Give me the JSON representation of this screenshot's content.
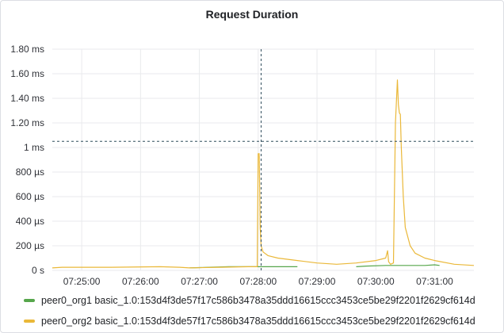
{
  "panel": {
    "title": "Request Duration"
  },
  "chart_data": {
    "type": "line",
    "title": "Request Duration",
    "xlabel": "",
    "ylabel": "",
    "ylim": [
      0,
      1.8
    ],
    "y_unit": "ms",
    "y_ticks": [
      {
        "value": 0,
        "label": "0 s"
      },
      {
        "value": 0.2,
        "label": "200 µs"
      },
      {
        "value": 0.4,
        "label": "400 µs"
      },
      {
        "value": 0.6,
        "label": "600 µs"
      },
      {
        "value": 0.8,
        "label": "800 µs"
      },
      {
        "value": 1.0,
        "label": "1 ms"
      },
      {
        "value": 1.2,
        "label": "1.20 ms"
      },
      {
        "value": 1.4,
        "label": "1.40 ms"
      },
      {
        "value": 1.6,
        "label": "1.60 ms"
      },
      {
        "value": 1.8,
        "label": "1.80 ms"
      }
    ],
    "xlim": [
      "07:24:30",
      "07:31:40"
    ],
    "x_ticks": [
      "07:25:00",
      "07:26:00",
      "07:27:00",
      "07:28:00",
      "07:29:00",
      "07:30:00",
      "07:31:00"
    ],
    "grid": true,
    "crosshair": {
      "x": "07:28:03",
      "y": 1.05
    },
    "legend_position": "bottom",
    "series": [
      {
        "name": "peer0_org1 basic_1.0:153d4f3de57f17c586b3478a35ddd16615ccc3453ce5be29f2201f2629cf614d",
        "color": "#56a64b",
        "x": [
          "07:26:50",
          "07:27:10",
          "07:27:30",
          "07:27:50",
          "07:28:10",
          "07:28:30",
          "07:28:40",
          null,
          "07:29:40",
          "07:29:50",
          "07:30:10",
          "07:30:30",
          "07:30:50",
          "07:31:00",
          "07:31:05"
        ],
        "y": [
          0.02,
          0.025,
          0.03,
          0.03,
          0.03,
          0.03,
          0.03,
          null,
          0.03,
          0.035,
          0.04,
          0.04,
          0.04,
          0.045,
          0.04
        ]
      },
      {
        "name": "peer0_org2 basic_1.0:153d4f3de57f17c586b3478a35ddd16615ccc3453ce5be29f2201f2629cf614d",
        "color": "#eab839",
        "x": [
          "07:24:30",
          "07:24:40",
          "07:25:30",
          "07:26:20",
          "07:26:40",
          "07:26:50",
          "07:27:20",
          "07:27:50",
          "07:27:59",
          "07:28:00",
          "07:28:01",
          "07:28:02",
          "07:28:03",
          "07:28:05",
          "07:28:10",
          "07:28:20",
          "07:28:40",
          "07:29:00",
          "07:29:20",
          "07:29:40",
          "07:30:00",
          "07:30:10",
          "07:30:12",
          "07:30:13",
          "07:30:15",
          "07:30:18",
          "07:30:20",
          "07:30:22",
          "07:30:23",
          "07:30:24",
          "07:30:25",
          "07:30:26",
          "07:30:28",
          "07:30:30",
          "07:30:35",
          "07:30:40",
          "07:30:50",
          "07:31:00",
          "07:31:20",
          "07:31:40"
        ],
        "y": [
          0.02,
          0.025,
          0.025,
          0.03,
          0.025,
          0.02,
          0.025,
          0.03,
          0.03,
          0.95,
          0.95,
          0.35,
          0.2,
          0.15,
          0.12,
          0.1,
          0.08,
          0.06,
          0.05,
          0.06,
          0.08,
          0.1,
          0.16,
          0.07,
          0.05,
          0.06,
          1.2,
          1.55,
          1.35,
          1.28,
          1.27,
          1.0,
          0.6,
          0.35,
          0.2,
          0.14,
          0.1,
          0.08,
          0.05,
          0.04
        ]
      }
    ]
  }
}
